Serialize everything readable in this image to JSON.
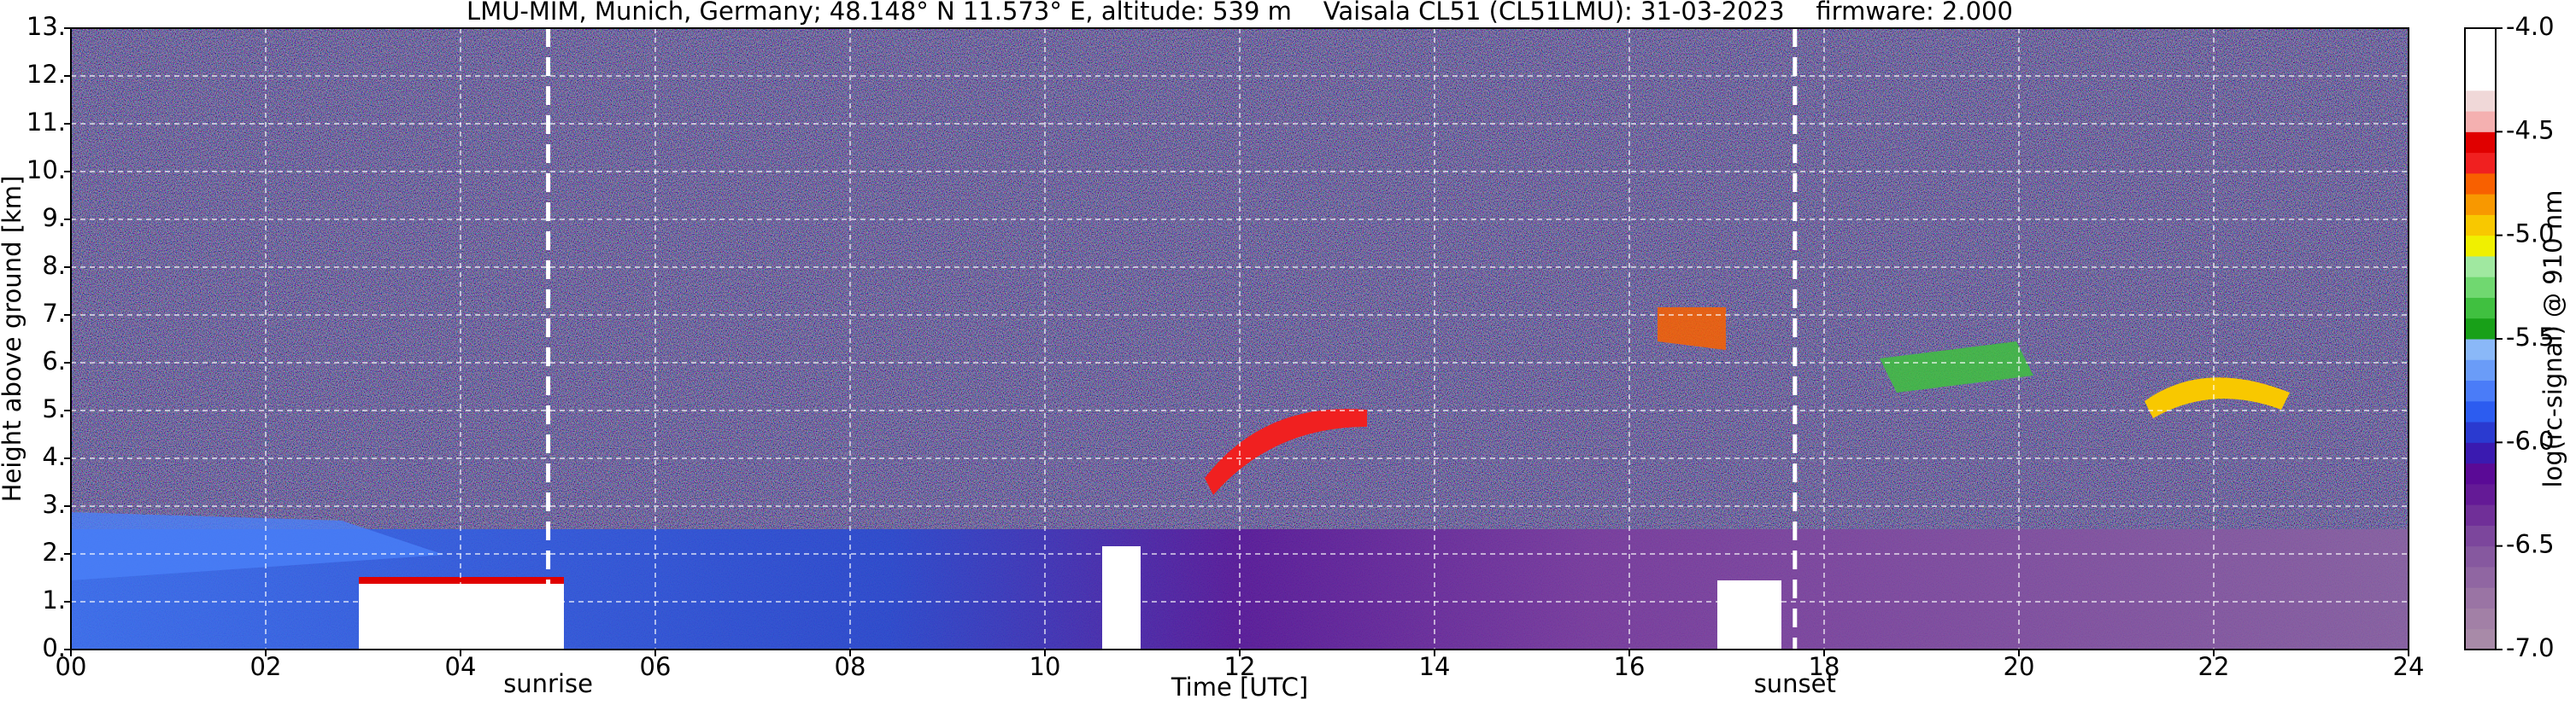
{
  "chart_data": {
    "type": "heatmap",
    "title": "LMU-MIM, Munich, Germany; 48.148° N 11.573° E, altitude: 539 m    Vaisala CL51 (CL51LMU): 31-03-2023    firmware: 2.000",
    "x_label": "Time [UTC]",
    "y_label": "Height above ground [km]",
    "xlim": [
      0,
      24
    ],
    "xticks": [
      {
        "value": 0,
        "label": "00"
      },
      {
        "value": 2,
        "label": "02"
      },
      {
        "value": 4,
        "label": "04"
      },
      {
        "value": 6,
        "label": "06"
      },
      {
        "value": 8,
        "label": "08"
      },
      {
        "value": 10,
        "label": "10"
      },
      {
        "value": 12,
        "label": "12"
      },
      {
        "value": 14,
        "label": "14"
      },
      {
        "value": 16,
        "label": "16"
      },
      {
        "value": 18,
        "label": "18"
      },
      {
        "value": 20,
        "label": "20"
      },
      {
        "value": 22,
        "label": "22"
      },
      {
        "value": 24,
        "label": "24"
      }
    ],
    "ylim": [
      0,
      13
    ],
    "yticks": [
      {
        "value": 0,
        "label": "0."
      },
      {
        "value": 1,
        "label": "1."
      },
      {
        "value": 2,
        "label": "2."
      },
      {
        "value": 3,
        "label": "3."
      },
      {
        "value": 4,
        "label": "4."
      },
      {
        "value": 5,
        "label": "5."
      },
      {
        "value": 6,
        "label": "6."
      },
      {
        "value": 7,
        "label": "7."
      },
      {
        "value": 8,
        "label": "8."
      },
      {
        "value": 9,
        "label": "9."
      },
      {
        "value": 10,
        "label": "10."
      },
      {
        "value": 11,
        "label": "11."
      },
      {
        "value": 12,
        "label": "12."
      },
      {
        "value": 13,
        "label": "13."
      }
    ],
    "grid": true,
    "annotations": [
      {
        "text": "sunrise",
        "x": 4.9
      },
      {
        "text": "sunset",
        "x": 17.7
      }
    ],
    "colorbar": {
      "label": "log(rc-signal) @ 910 nm",
      "lim": [
        -7.0,
        -4.0
      ],
      "ticks": [
        {
          "value": -7.0,
          "label": "-7.0"
        },
        {
          "value": -6.5,
          "label": "-6.5"
        },
        {
          "value": -6.0,
          "label": "-6.0"
        },
        {
          "value": -5.5,
          "label": "-5.5"
        },
        {
          "value": -5.0,
          "label": "-5.0"
        },
        {
          "value": -4.5,
          "label": "-4.5"
        },
        {
          "value": -4.0,
          "label": "-4.0"
        }
      ],
      "colors": [
        "#a88aa8",
        "#a280a6",
        "#9a74a4",
        "#9066a2",
        "#86589f",
        "#7c469c",
        "#702f98",
        "#641a96",
        "#5a0a96",
        "#3a1ab0",
        "#2a3ad0",
        "#2c5cf0",
        "#4a7cf8",
        "#6a9cf8",
        "#8ab8f8",
        "#18a018",
        "#40c040",
        "#70d870",
        "#a0e8a0",
        "#f0f000",
        "#f8c800",
        "#f89800",
        "#f86000",
        "#f02020",
        "#e00000",
        "#f4b0b0",
        "#f0d8d8",
        "#ffffff",
        "#ffffff",
        "#ffffff"
      ]
    }
  }
}
